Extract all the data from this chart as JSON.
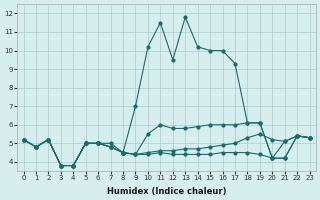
{
  "xlabel": "Humidex (Indice chaleur)",
  "background_color": "#d6eeee",
  "grid_color": "#aacccc",
  "line_color": "#1a6b6b",
  "x_values": [
    0,
    1,
    2,
    3,
    4,
    5,
    6,
    7,
    8,
    9,
    10,
    11,
    12,
    13,
    14,
    15,
    16,
    17,
    18,
    19,
    20,
    21,
    22,
    23
  ],
  "line1": [
    5.2,
    4.8,
    5.2,
    3.8,
    3.8,
    5.0,
    5.0,
    4.8,
    4.5,
    4.4,
    4.4,
    4.5,
    4.4,
    4.4,
    4.4,
    4.4,
    4.5,
    4.5,
    4.5,
    4.4,
    4.2,
    4.2,
    5.4,
    5.3
  ],
  "line2": [
    5.2,
    4.8,
    5.2,
    3.8,
    3.8,
    5.0,
    5.0,
    4.8,
    4.5,
    7.0,
    10.2,
    11.5,
    9.5,
    11.8,
    10.2,
    10.0,
    10.0,
    9.3,
    6.1,
    6.1,
    4.2,
    4.2,
    5.4,
    5.3
  ],
  "line3": [
    5.2,
    4.8,
    5.2,
    3.8,
    3.8,
    5.0,
    5.0,
    5.0,
    4.5,
    4.4,
    4.5,
    4.6,
    4.6,
    4.7,
    4.7,
    4.8,
    4.9,
    5.0,
    5.3,
    5.5,
    5.2,
    5.1,
    5.4,
    5.3
  ],
  "line4": [
    5.2,
    4.8,
    5.2,
    3.8,
    3.8,
    5.0,
    5.0,
    4.8,
    4.5,
    4.4,
    5.5,
    6.0,
    5.8,
    5.8,
    5.9,
    6.0,
    6.0,
    6.0,
    6.1,
    6.1,
    4.2,
    5.1,
    5.4,
    5.3
  ],
  "ylim": [
    3.5,
    12.5
  ],
  "xlim": [
    -0.5,
    23.5
  ],
  "yticks": [
    4,
    5,
    6,
    7,
    8,
    9,
    10,
    11,
    12
  ],
  "xticks": [
    0,
    1,
    2,
    3,
    4,
    5,
    6,
    7,
    8,
    9,
    10,
    11,
    12,
    13,
    14,
    15,
    16,
    17,
    18,
    19,
    20,
    21,
    22,
    23
  ]
}
